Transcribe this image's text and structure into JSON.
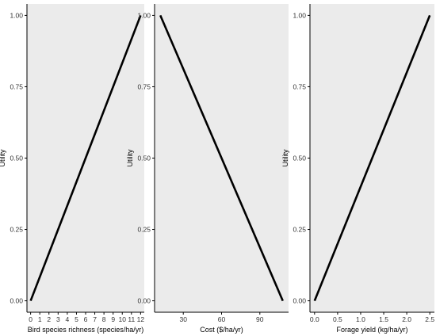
{
  "chart_data": [
    {
      "type": "line",
      "name": "bird",
      "xlabel": "Bird species richness (species/ha/yr)",
      "ylabel": "Utility",
      "xlim": [
        -0.4,
        12.4
      ],
      "ylim": [
        -0.04,
        1.04
      ],
      "x_ticks": [
        0,
        1,
        2,
        3,
        4,
        5,
        6,
        7,
        8,
        9,
        10,
        11,
        12
      ],
      "x_tick_labels": [
        "0",
        "1",
        "2",
        "3",
        "4",
        "5",
        "6",
        "7",
        "8",
        "9",
        "10",
        "11",
        "12"
      ],
      "y_ticks": [
        0,
        0.25,
        0.5,
        0.75,
        1
      ],
      "y_tick_labels": [
        "0.00",
        "0.25",
        "0.50",
        "0.75",
        "1.00"
      ],
      "x": [
        0,
        12
      ],
      "y": [
        0,
        1
      ],
      "grid": false
    },
    {
      "type": "line",
      "name": "cost",
      "xlabel": "Cost ($/ha/yr)",
      "ylabel": "Utility",
      "xlim": [
        7.5,
        112.5
      ],
      "ylim": [
        -0.04,
        1.04
      ],
      "x_ticks": [
        30,
        60,
        90
      ],
      "x_tick_labels": [
        "30",
        "60",
        "90"
      ],
      "y_ticks": [
        0,
        0.25,
        0.5,
        0.75,
        1
      ],
      "y_tick_labels": [
        "0.00",
        "0.25",
        "0.50",
        "0.75",
        "1.00"
      ],
      "x": [
        12,
        108
      ],
      "y": [
        1,
        0
      ],
      "grid": false
    },
    {
      "type": "line",
      "name": "forage",
      "xlabel": "Forage yield (kg/ha/yr)",
      "ylabel": "Utility",
      "xlim": [
        -0.1,
        2.6
      ],
      "ylim": [
        -0.04,
        1.04
      ],
      "x_ticks": [
        0,
        0.5,
        1,
        1.5,
        2,
        2.5
      ],
      "x_tick_labels": [
        "0.0",
        "0.5",
        "1.0",
        "1.5",
        "2.0",
        "2.5"
      ],
      "y_ticks": [
        0,
        0.25,
        0.5,
        0.75,
        1
      ],
      "y_tick_labels": [
        "0.00",
        "0.25",
        "0.50",
        "0.75",
        "1.00"
      ],
      "x": [
        0,
        2.5
      ],
      "y": [
        0,
        1
      ],
      "grid": false
    }
  ],
  "colors": {
    "panel_background": "#ebebeb",
    "line": "#000000",
    "axis": "#000000"
  }
}
